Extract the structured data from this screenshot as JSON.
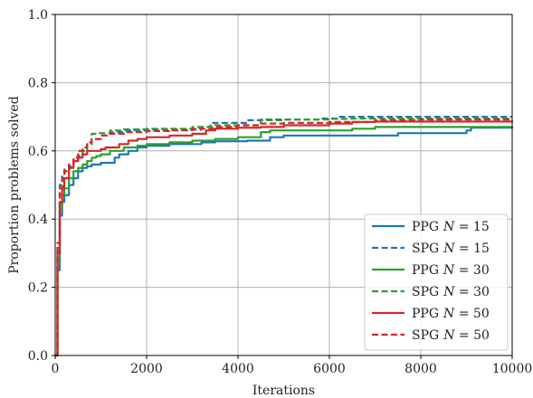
{
  "chart_data": {
    "type": "line",
    "title": "",
    "xlabel": "Iterations",
    "ylabel": "Proportion problems solved",
    "xlim": [
      0,
      10000
    ],
    "ylim": [
      0.0,
      1.0
    ],
    "x_ticks": [
      "0",
      "2000",
      "4000",
      "6000",
      "8000",
      "10000"
    ],
    "y_ticks": [
      "0.0",
      "0.2",
      "0.4",
      "0.6",
      "0.8",
      "1.0"
    ],
    "grid": true,
    "legend_position": "lower right",
    "series": [
      {
        "name": "PPG N = 15",
        "label_prefix": "PPG",
        "label_var": "N",
        "label_suffix": " = 15",
        "color": "#1f77b4",
        "dash": "solid",
        "points": [
          [
            0,
            0.0
          ],
          [
            50,
            0.25
          ],
          [
            100,
            0.41
          ],
          [
            150,
            0.45
          ],
          [
            200,
            0.47
          ],
          [
            300,
            0.5
          ],
          [
            400,
            0.52
          ],
          [
            500,
            0.54
          ],
          [
            600,
            0.55
          ],
          [
            700,
            0.555
          ],
          [
            800,
            0.56
          ],
          [
            1000,
            0.565
          ],
          [
            1300,
            0.58
          ],
          [
            1400,
            0.59
          ],
          [
            1600,
            0.6
          ],
          [
            1800,
            0.61
          ],
          [
            2000,
            0.615
          ],
          [
            2500,
            0.62
          ],
          [
            3200,
            0.625
          ],
          [
            3500,
            0.628
          ],
          [
            4200,
            0.63
          ],
          [
            4700,
            0.64
          ],
          [
            5000,
            0.645
          ],
          [
            7500,
            0.652
          ],
          [
            9000,
            0.66
          ],
          [
            9100,
            0.668
          ],
          [
            10000,
            0.67
          ]
        ]
      },
      {
        "name": "SPG N = 15",
        "label_prefix": "SPG",
        "label_var": "N",
        "label_suffix": " = 15",
        "color": "#1f77b4",
        "dash": "dashed",
        "points": [
          [
            0,
            0.0
          ],
          [
            50,
            0.3
          ],
          [
            100,
            0.5
          ],
          [
            150,
            0.53
          ],
          [
            200,
            0.545
          ],
          [
            300,
            0.555
          ],
          [
            400,
            0.57
          ],
          [
            500,
            0.585
          ],
          [
            600,
            0.6
          ],
          [
            700,
            0.62
          ],
          [
            800,
            0.635
          ],
          [
            1000,
            0.645
          ],
          [
            1200,
            0.655
          ],
          [
            1500,
            0.66
          ],
          [
            2000,
            0.662
          ],
          [
            3200,
            0.67
          ],
          [
            3400,
            0.682
          ],
          [
            4200,
            0.69
          ],
          [
            4500,
            0.692
          ],
          [
            5800,
            0.695
          ],
          [
            6200,
            0.7
          ],
          [
            10000,
            0.7
          ]
        ]
      },
      {
        "name": "PPG N = 30",
        "label_prefix": "PPG",
        "label_var": "N",
        "label_suffix": " = 30",
        "color": "#2ca02c",
        "dash": "solid",
        "points": [
          [
            0,
            0.0
          ],
          [
            50,
            0.28
          ],
          [
            100,
            0.43
          ],
          [
            150,
            0.47
          ],
          [
            200,
            0.49
          ],
          [
            300,
            0.52
          ],
          [
            400,
            0.54
          ],
          [
            500,
            0.55
          ],
          [
            600,
            0.56
          ],
          [
            700,
            0.57
          ],
          [
            800,
            0.58
          ],
          [
            900,
            0.585
          ],
          [
            1000,
            0.59
          ],
          [
            1200,
            0.6
          ],
          [
            1500,
            0.61
          ],
          [
            1800,
            0.615
          ],
          [
            2000,
            0.62
          ],
          [
            2500,
            0.625
          ],
          [
            3000,
            0.63
          ],
          [
            3500,
            0.635
          ],
          [
            4000,
            0.64
          ],
          [
            4500,
            0.655
          ],
          [
            4700,
            0.66
          ],
          [
            6500,
            0.665
          ],
          [
            7000,
            0.67
          ],
          [
            10000,
            0.672
          ]
        ]
      },
      {
        "name": "SPG N = 30",
        "label_prefix": "SPG",
        "label_var": "N",
        "label_suffix": " = 30",
        "color": "#2ca02c",
        "dash": "dashed",
        "points": [
          [
            0,
            0.0
          ],
          [
            50,
            0.32
          ],
          [
            100,
            0.48
          ],
          [
            150,
            0.52
          ],
          [
            200,
            0.54
          ],
          [
            300,
            0.56
          ],
          [
            400,
            0.575
          ],
          [
            500,
            0.59
          ],
          [
            600,
            0.6
          ],
          [
            700,
            0.62
          ],
          [
            800,
            0.65
          ],
          [
            900,
            0.652
          ],
          [
            1200,
            0.66
          ],
          [
            1500,
            0.663
          ],
          [
            2000,
            0.665
          ],
          [
            3000,
            0.67
          ],
          [
            3500,
            0.675
          ],
          [
            4500,
            0.69
          ],
          [
            5000,
            0.692
          ],
          [
            6000,
            0.694
          ],
          [
            6500,
            0.695
          ],
          [
            8000,
            0.695
          ],
          [
            10000,
            0.695
          ]
        ]
      },
      {
        "name": "PPG N = 50",
        "label_prefix": "PPG",
        "label_var": "N",
        "label_suffix": " = 50",
        "color": "#d62728",
        "dash": "solid",
        "points": [
          [
            0,
            0.0
          ],
          [
            50,
            0.3
          ],
          [
            100,
            0.45
          ],
          [
            150,
            0.49
          ],
          [
            200,
            0.52
          ],
          [
            300,
            0.55
          ],
          [
            400,
            0.57
          ],
          [
            500,
            0.58
          ],
          [
            600,
            0.59
          ],
          [
            700,
            0.6
          ],
          [
            1000,
            0.605
          ],
          [
            1100,
            0.61
          ],
          [
            1400,
            0.62
          ],
          [
            1600,
            0.63
          ],
          [
            1800,
            0.635
          ],
          [
            2000,
            0.64
          ],
          [
            2500,
            0.645
          ],
          [
            3000,
            0.65
          ],
          [
            3300,
            0.66
          ],
          [
            3500,
            0.665
          ],
          [
            4000,
            0.668
          ],
          [
            4500,
            0.67
          ],
          [
            5000,
            0.675
          ],
          [
            6000,
            0.68
          ],
          [
            6500,
            0.685
          ],
          [
            7000,
            0.686
          ],
          [
            8000,
            0.686
          ],
          [
            10000,
            0.688
          ]
        ]
      },
      {
        "name": "SPG N = 50",
        "label_prefix": "SPG",
        "label_var": "N",
        "label_suffix": " = 50",
        "color": "#d62728",
        "dash": "dashed",
        "points": [
          [
            0,
            0.0
          ],
          [
            50,
            0.33
          ],
          [
            100,
            0.49
          ],
          [
            150,
            0.52
          ],
          [
            200,
            0.54
          ],
          [
            300,
            0.56
          ],
          [
            400,
            0.58
          ],
          [
            500,
            0.6
          ],
          [
            600,
            0.61
          ],
          [
            700,
            0.625
          ],
          [
            800,
            0.635
          ],
          [
            1000,
            0.645
          ],
          [
            1200,
            0.65
          ],
          [
            1500,
            0.655
          ],
          [
            2000,
            0.658
          ],
          [
            2500,
            0.66
          ],
          [
            3000,
            0.665
          ],
          [
            3500,
            0.67
          ],
          [
            4000,
            0.675
          ],
          [
            4500,
            0.68
          ],
          [
            5000,
            0.682
          ],
          [
            6000,
            0.685
          ],
          [
            7000,
            0.69
          ],
          [
            8000,
            0.692
          ],
          [
            10000,
            0.693
          ]
        ]
      }
    ]
  }
}
